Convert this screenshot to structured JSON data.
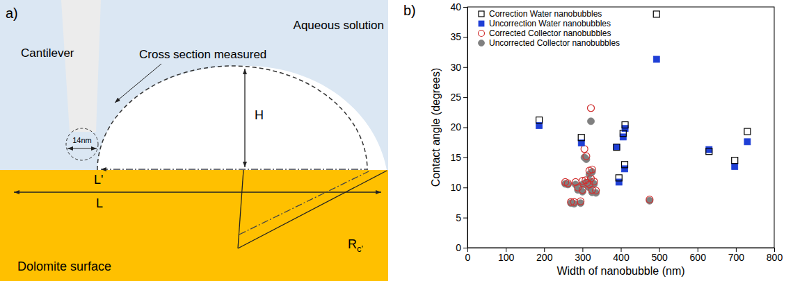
{
  "diagram": {
    "panel_label": "a)",
    "labels": {
      "medium": "Aqueous solution",
      "cantilever": "Cantilever",
      "cross_section": "Cross section measured",
      "tip_size": "14nm",
      "height": "H",
      "base_measured": "L'",
      "base": "L",
      "radius": {
        "text": "R",
        "subscript": "c'"
      },
      "substrate": "Dolomite surface"
    }
  },
  "chart_data": {
    "type": "scatter",
    "panel_label": "b)",
    "x_label": "Width of nanobubble (nm)",
    "y_label": "Contact angle (degrees)",
    "xlim": [
      0,
      800
    ],
    "xticks": [
      0,
      100,
      200,
      300,
      400,
      500,
      600,
      700,
      800
    ],
    "ylim": [
      0,
      40
    ],
    "yticks": [
      0,
      5,
      10,
      15,
      20,
      25,
      30,
      35,
      40
    ],
    "legend": "upper left",
    "series": [
      {
        "name": "Correction Water nanobubbles",
        "color": "#000000",
        "marker": "square-open",
        "x": [
          187,
          297,
          389,
          395,
          406,
          411,
          410,
          493,
          630,
          697,
          730
        ],
        "values": [
          21.2,
          18.3,
          16.7,
          11.6,
          19.0,
          20.4,
          13.8,
          38.8,
          16.0,
          14.5,
          19.3
        ]
      },
      {
        "name": "Uncorrection Water nanobubbles",
        "color": "#1f3fd6",
        "marker": "square",
        "x": [
          187,
          297,
          389,
          395,
          406,
          411,
          410,
          493,
          630,
          697,
          730
        ],
        "values": [
          20.3,
          17.4,
          16.7,
          10.9,
          18.4,
          19.8,
          13.1,
          31.3,
          16.3,
          13.5,
          17.6
        ]
      },
      {
        "name": "Corrected Collector nanobubbles",
        "color": "#d03030",
        "marker": "circle-open",
        "x": [
          255,
          262,
          270,
          278,
          282,
          288,
          295,
          300,
          305,
          308,
          312,
          318,
          322,
          325,
          330,
          335,
          318,
          325,
          300,
          475,
          322,
          310
        ],
        "values": [
          10.9,
          10.7,
          7.6,
          7.6,
          10.9,
          10.0,
          7.7,
          11.1,
          16.4,
          11.2,
          10.8,
          10.5,
          23.2,
          13.0,
          11.0,
          9.5,
          12.8,
          9.6,
          9.6,
          8.0,
          11.5,
          15.2
        ]
      },
      {
        "name": "Uncorrected Collector nanobubbles",
        "color": "#808080",
        "marker": "circle",
        "x": [
          255,
          262,
          270,
          278,
          282,
          288,
          295,
          300,
          305,
          308,
          312,
          318,
          322,
          325,
          330,
          335,
          318,
          325,
          300,
          475,
          322,
          310
        ],
        "values": [
          10.6,
          10.5,
          7.4,
          7.3,
          10.5,
          9.6,
          7.4,
          10.5,
          15.0,
          10.8,
          10.4,
          10.0,
          21.0,
          12.6,
          10.6,
          9.1,
          12.2,
          9.2,
          9.3,
          7.8,
          11.0,
          14.7
        ]
      }
    ]
  }
}
